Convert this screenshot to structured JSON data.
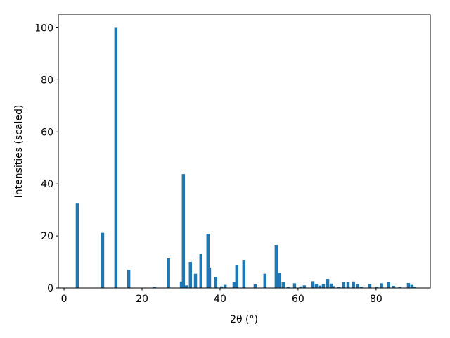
{
  "chart_data": {
    "type": "bar",
    "x": [
      3.4,
      9.9,
      13.3,
      16.6,
      23.2,
      26.8,
      30.1,
      30.6,
      31.4,
      32.4,
      33.7,
      35.1,
      36.9,
      37.3,
      38.9,
      40.4,
      41.3,
      43.6,
      44.3,
      46.1,
      49.0,
      51.5,
      54.4,
      55.3,
      56.2,
      57.5,
      59.1,
      60.7,
      61.6,
      63.8,
      64.7,
      65.6,
      66.5,
      67.6,
      68.5,
      69.0,
      70.5,
      71.7,
      72.8,
      74.2,
      75.3,
      76.2,
      78.4,
      80.2,
      81.4,
      83.2,
      84.5,
      86.1,
      88.3,
      89.2,
      89.9
    ],
    "values": [
      32.7,
      21.2,
      100,
      7.0,
      0.4,
      11.4,
      2.5,
      43.8,
      1.0,
      10.0,
      5.5,
      13.0,
      20.8,
      7.9,
      4.3,
      0.6,
      1.2,
      2.3,
      8.9,
      10.8,
      1.4,
      5.5,
      16.5,
      5.8,
      2.3,
      0.4,
      1.8,
      0.6,
      1.0,
      2.6,
      1.5,
      0.9,
      1.5,
      3.5,
      1.7,
      0.7,
      0.3,
      2.3,
      2.2,
      2.5,
      1.5,
      0.5,
      1.5,
      0.5,
      1.8,
      2.4,
      0.8,
      0.3,
      1.9,
      1.2,
      0.5
    ],
    "color": "#1f77b4",
    "xlabel": "2θ (°)",
    "ylabel": "Intensities (scaled)",
    "xlim": [
      -1.45,
      93.9
    ],
    "ylim": [
      0,
      105
    ],
    "xticks": [
      0,
      20,
      40,
      60,
      80
    ],
    "yticks": [
      0,
      20,
      40,
      60,
      80,
      100
    ]
  }
}
